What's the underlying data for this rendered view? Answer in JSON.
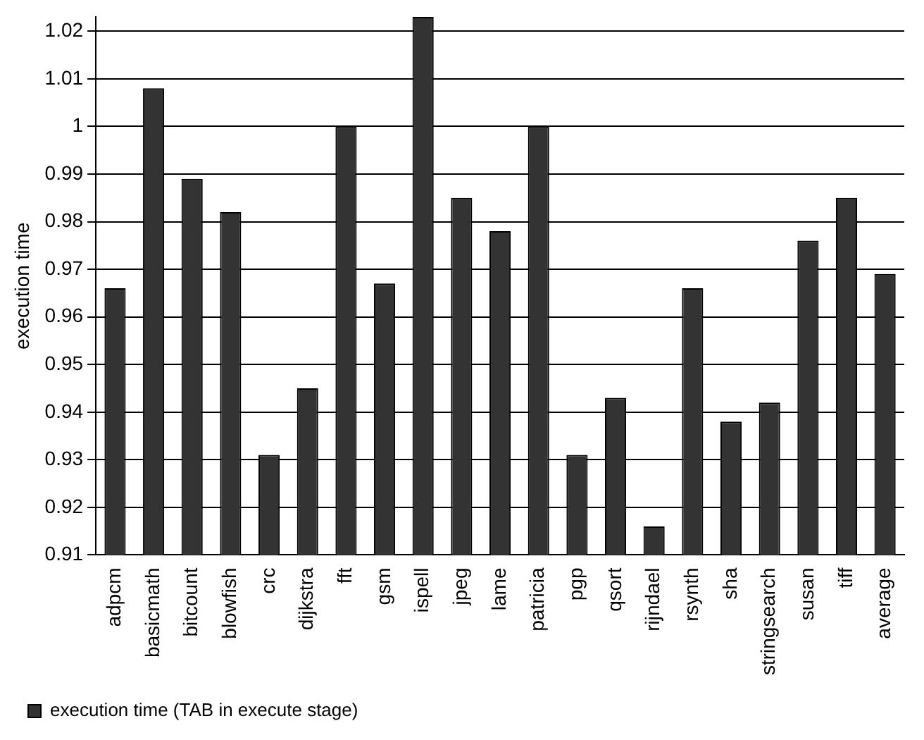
{
  "chart_data": {
    "type": "bar",
    "ylabel": "execution time",
    "categories": [
      "adpcm",
      "basicmath",
      "bitcount",
      "blowfish",
      "crc",
      "dijkstra",
      "fft",
      "gsm",
      "ispell",
      "jpeg",
      "lame",
      "patricia",
      "pgp",
      "qsort",
      "rijndael",
      "rsynth",
      "sha",
      "stringsearch",
      "susan",
      "tiff",
      "average"
    ],
    "series": [
      {
        "name": "execution time (TAB in execute stage)",
        "color": "#333333",
        "values": [
          0.966,
          1.008,
          0.989,
          0.982,
          0.931,
          0.945,
          1.0,
          0.967,
          1.023,
          0.985,
          0.978,
          1.0,
          0.931,
          0.943,
          0.916,
          0.966,
          0.938,
          0.942,
          0.976,
          0.985,
          0.969
        ]
      }
    ],
    "ylim": [
      0.91,
      1.023
    ],
    "yticks": [
      0.91,
      0.92,
      0.93,
      0.94,
      0.95,
      0.96,
      0.97,
      0.98,
      0.99,
      1,
      1.01,
      1.02
    ],
    "grid": "y",
    "legend": "bottom left"
  }
}
